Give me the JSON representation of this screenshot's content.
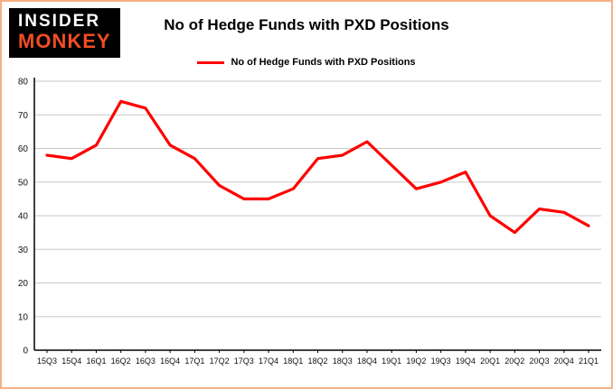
{
  "logo": {
    "line1": "INSIDER",
    "line2": "MONKEY"
  },
  "header": {
    "title": "No of Hedge Funds with PXD Positions"
  },
  "legend": {
    "label": "No of Hedge Funds with PXD Positions"
  },
  "chart_data": {
    "type": "line",
    "title": "No of Hedge Funds with PXD Positions",
    "categories": [
      "15Q3",
      "15Q4",
      "16Q1",
      "16Q2",
      "16Q3",
      "16Q4",
      "17Q1",
      "17Q2",
      "17Q3",
      "17Q4",
      "18Q1",
      "18Q2",
      "18Q3",
      "18Q4",
      "19Q1",
      "19Q2",
      "19Q3",
      "19Q4",
      "20Q1",
      "20Q2",
      "20Q3",
      "20Q4",
      "21Q1"
    ],
    "values": [
      58,
      57,
      61,
      74,
      72,
      61,
      57,
      49,
      45,
      45,
      48,
      57,
      58,
      62,
      55,
      48,
      50,
      53,
      40,
      35,
      42,
      41,
      37
    ],
    "xlabel": "",
    "ylabel": "",
    "ylim": [
      0,
      80
    ],
    "ytick_step": 10,
    "grid": "horizontal",
    "legend_position": "top",
    "colors": {
      "line": "#fe0000",
      "grid": "#c8c8c8",
      "axis": "#000000",
      "page_border": "#f5b183",
      "logo_bg": "#000000",
      "logo_accent": "#f04e23"
    }
  }
}
